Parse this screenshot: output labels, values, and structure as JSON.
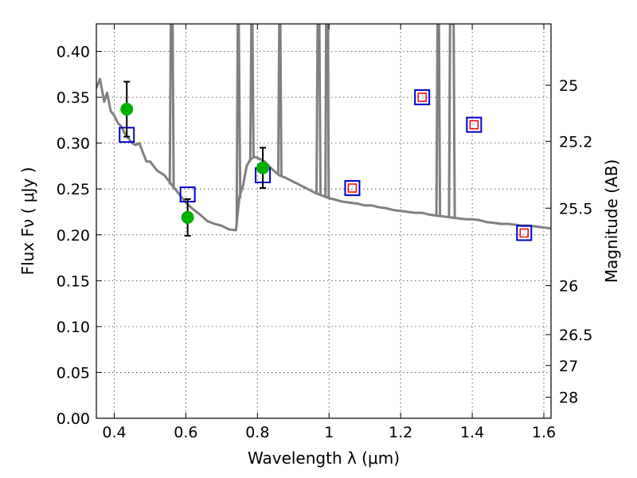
{
  "chart_data": {
    "type": "line",
    "xlabel": "Wavelength  λ (μm)",
    "ylabel": "Flux  Fν  ( μJy )",
    "y2label": "Magnitude (AB)",
    "xlim": [
      0.35,
      1.62
    ],
    "ylim": [
      0.0,
      0.43
    ],
    "grid": true,
    "x_ticks": [
      0.4,
      0.6,
      0.8,
      1.0,
      1.2,
      1.4,
      1.6
    ],
    "x_tick_labels": [
      "0.4",
      "0.6",
      "0.8",
      "1",
      "1.2",
      "1.4",
      "1.6"
    ],
    "y_ticks": [
      0.0,
      0.05,
      0.1,
      0.15,
      0.2,
      0.25,
      0.3,
      0.35,
      0.4
    ],
    "y_tick_labels": [
      "0.00",
      "0.05",
      "0.10",
      "0.15",
      "0.20",
      "0.25",
      "0.30",
      "0.35",
      "0.40"
    ],
    "mag_ticks": [
      25,
      25.2,
      25.5,
      26,
      26.5,
      27,
      28
    ],
    "mag_tick_labels": [
      "25",
      "25.2",
      "25.5",
      "26",
      "26.5",
      "27",
      "28"
    ],
    "series": [
      {
        "kind": "line",
        "color": "#808080",
        "x": [
          0.35,
          0.36,
          0.365,
          0.372,
          0.38,
          0.39,
          0.4,
          0.41,
          0.42,
          0.43,
          0.44,
          0.45,
          0.46,
          0.47,
          0.48,
          0.49,
          0.5,
          0.52,
          0.54,
          0.56,
          0.58,
          0.6,
          0.62,
          0.64,
          0.66,
          0.68,
          0.7,
          0.72,
          0.74,
          0.75,
          0.76,
          0.77,
          0.78,
          0.79,
          0.8,
          0.81,
          0.82,
          0.84,
          0.86,
          0.88,
          0.9,
          0.92,
          0.94,
          0.96,
          0.98,
          1.0,
          1.02,
          1.04,
          1.06,
          1.08,
          1.1,
          1.12,
          1.14,
          1.16,
          1.18,
          1.2,
          1.22,
          1.24,
          1.26,
          1.28,
          1.3,
          1.32,
          1.34,
          1.36,
          1.38,
          1.4,
          1.42,
          1.44,
          1.46,
          1.48,
          1.5,
          1.52,
          1.54,
          1.56,
          1.58,
          1.6,
          1.62
        ],
        "y": [
          0.36,
          0.37,
          0.36,
          0.345,
          0.355,
          0.335,
          0.33,
          0.322,
          0.318,
          0.31,
          0.305,
          0.3,
          0.298,
          0.3,
          0.29,
          0.28,
          0.28,
          0.27,
          0.265,
          0.255,
          0.245,
          0.235,
          0.228,
          0.222,
          0.215,
          0.212,
          0.21,
          0.206,
          0.205,
          0.242,
          0.254,
          0.275,
          0.282,
          0.285,
          0.284,
          0.282,
          0.28,
          0.272,
          0.265,
          0.262,
          0.258,
          0.254,
          0.25,
          0.246,
          0.243,
          0.24,
          0.238,
          0.236,
          0.235,
          0.234,
          0.232,
          0.232,
          0.23,
          0.229,
          0.227,
          0.226,
          0.225,
          0.224,
          0.224,
          0.222,
          0.221,
          0.22,
          0.219,
          0.218,
          0.217,
          0.217,
          0.216,
          0.214,
          0.213,
          0.212,
          0.212,
          0.211,
          0.21,
          0.21,
          0.209,
          0.208,
          0.207
        ]
      },
      {
        "kind": "observed-points",
        "color": "#00b000",
        "x": [
          0.435,
          0.605,
          0.815
        ],
        "y": [
          0.337,
          0.219,
          0.273
        ],
        "yerr": [
          0.03,
          0.02,
          0.022
        ]
      },
      {
        "kind": "model-squares",
        "color": "#0000cc",
        "x": [
          0.435,
          0.605,
          0.815,
          1.065,
          1.26,
          1.405,
          1.545
        ],
        "y": [
          0.309,
          0.244,
          0.265,
          0.251,
          0.35,
          0.32,
          0.202
        ]
      },
      {
        "kind": "inner-squares",
        "color": "#ff0000",
        "x": [
          1.065,
          1.26,
          1.405,
          1.545
        ],
        "y": [
          0.251,
          0.35,
          0.32,
          0.202
        ]
      }
    ],
    "spikes": [
      {
        "x": [
          0.555,
          0.558,
          0.563,
          0.566
        ],
        "y": [
          0.255,
          0.43,
          0.43,
          0.25
        ]
      },
      {
        "x": [
          0.742,
          0.745,
          0.748,
          0.752
        ],
        "y": [
          0.21,
          0.43,
          0.43,
          0.24
        ]
      },
      {
        "x": [
          0.78,
          0.783,
          0.786,
          0.789
        ],
        "y": [
          0.28,
          0.43,
          0.43,
          0.285
        ]
      },
      {
        "x": [
          0.858,
          0.861,
          0.864,
          0.867
        ],
        "y": [
          0.266,
          0.43,
          0.43,
          0.264
        ]
      },
      {
        "x": [
          0.965,
          0.968,
          0.973,
          0.976
        ],
        "y": [
          0.244,
          0.43,
          0.43,
          0.243
        ]
      },
      {
        "x": [
          0.99,
          0.992,
          0.997,
          0.999
        ],
        "y": [
          0.241,
          0.43,
          0.43,
          0.24
        ]
      },
      {
        "x": [
          1.3,
          1.303,
          1.307,
          1.31
        ],
        "y": [
          0.221,
          0.43,
          0.43,
          0.221
        ]
      },
      {
        "x": [
          1.335,
          1.338,
          1.348,
          1.351
        ],
        "y": [
          0.219,
          0.43,
          0.43,
          0.219
        ]
      }
    ]
  }
}
